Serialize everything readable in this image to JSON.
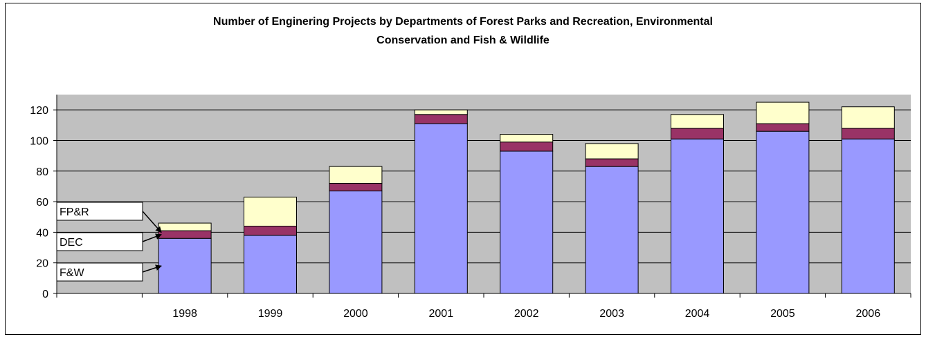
{
  "chart_data": {
    "type": "bar",
    "stacked": true,
    "title": [
      "Number of Enginering Projects by Departments of Forest Parks and Recreation, Environmental",
      "Conservation and Fish & Wildlife"
    ],
    "xlabel": "",
    "ylabel": "",
    "categories": [
      "",
      "1998",
      "1999",
      "2000",
      "2001",
      "2002",
      "2003",
      "2004",
      "2005",
      "2006"
    ],
    "ylim": [
      0,
      130
    ],
    "yticks": [
      0,
      20,
      40,
      60,
      80,
      100,
      120
    ],
    "grid": true,
    "series": [
      {
        "name": "F&W",
        "color": "#9999ff",
        "values": [
          null,
          36,
          38,
          67,
          111,
          93,
          83,
          101,
          106,
          101
        ]
      },
      {
        "name": "DEC",
        "color": "#993366",
        "values": [
          null,
          5,
          6,
          5,
          6,
          6,
          5,
          7,
          5,
          7
        ]
      },
      {
        "name": "FP&R",
        "color": "#ffffcc",
        "values": [
          null,
          5,
          19,
          11,
          3,
          5,
          10,
          9,
          14,
          14
        ]
      }
    ],
    "annotations": [
      "FP&R",
      "DEC",
      "F&W"
    ]
  }
}
